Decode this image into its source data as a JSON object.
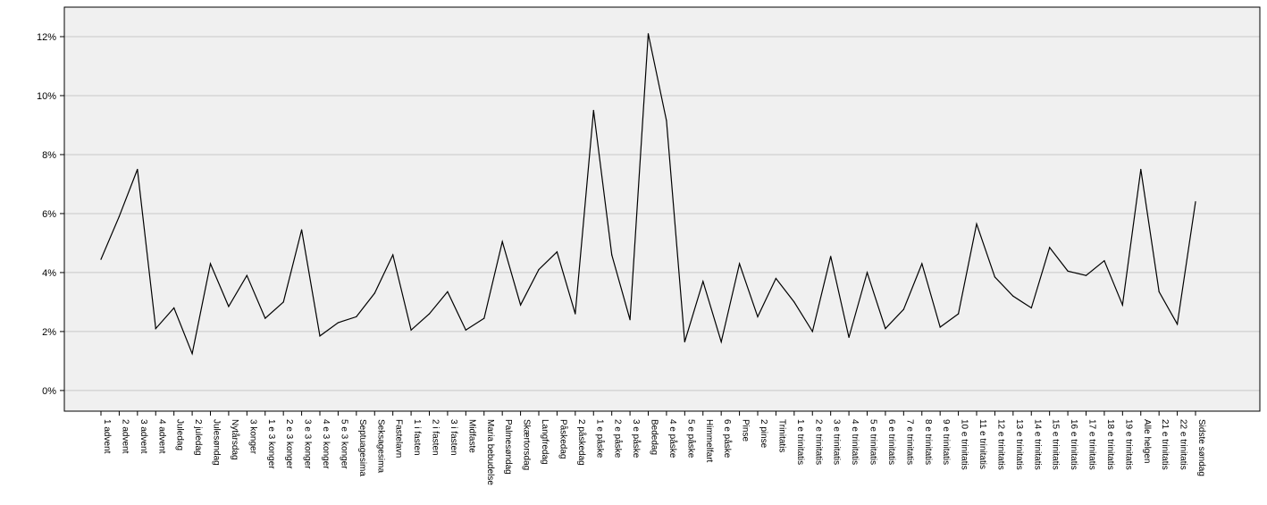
{
  "chart_data": {
    "type": "line",
    "title": "",
    "xlabel": "",
    "ylabel": "",
    "ylim": [
      -0.7,
      13.0
    ],
    "y_ticks": [
      0,
      2,
      4,
      6,
      8,
      10,
      12
    ],
    "y_tick_labels": [
      "0%",
      "2%",
      "4%",
      "6%",
      "8%",
      "10%",
      "12%"
    ],
    "grid": "horizontal",
    "colors": {
      "plot_background": "#f0f0f0",
      "grid": "#c8c8c8",
      "line": "#000000",
      "axis": "#000000"
    },
    "categories": [
      "1 advent",
      "2 advent",
      "3 advent",
      "4 advent",
      "Juledag",
      "2 juledag",
      "Julesøndag",
      "Nytårsdag",
      "3 konger",
      "1 e 3 konger",
      "2 e 3 konger",
      "3 e 3 konger",
      "4 e 3 konger",
      "5 e 3 konger",
      "Septuagesima",
      "Seksagesima",
      "Fastelavn",
      "1 i fasten",
      "2 i fasten",
      "3 i fasten",
      "Midfaste",
      "Maria bebudelse",
      "Palmesøndag",
      "Skærtorsdag",
      "Langfredag",
      "Påskedag",
      "2 påskedag",
      "1 e påske",
      "2 e påske",
      "3 e påske",
      "Bededag",
      "4 e påske",
      "5 e påske",
      "Himmelfart",
      "6 e påske",
      "Pinse",
      "2 pinse",
      "Trinitatis",
      "1 e trinitatis",
      "2 e trinitatis",
      "3 e trinitatis",
      "4 e trinitatis",
      "5 e trinitatis",
      "6 e trinitatis",
      "7 e trinitatis",
      "8 e trinitatis",
      "9 e trinitatis",
      "10 e trinitatis",
      "11 e trinitatis",
      "12 e trinitatis",
      "13 e trinitatis",
      "14 e trinitatis",
      "15 e trinitatis",
      "16 e trinitatis",
      "17 e trinitatis",
      "18 e trinitatis",
      "19 e trinitatis",
      "Alle helgen",
      "21 e trinitatis",
      "22 e trinitatis",
      "Sidste søndag"
    ],
    "series": [
      {
        "values": [
          4.45,
          5.9,
          7.5,
          2.1,
          2.8,
          1.25,
          4.3,
          2.85,
          3.9,
          2.45,
          3.0,
          5.45,
          1.85,
          2.3,
          2.5,
          3.3,
          4.6,
          2.05,
          2.6,
          3.35,
          2.05,
          2.45,
          5.05,
          2.9,
          4.1,
          4.7,
          2.6,
          9.5,
          4.6,
          2.4,
          12.1,
          9.15,
          1.65,
          3.7,
          1.65,
          4.3,
          2.5,
          3.8,
          3.0,
          2.0,
          4.55,
          1.8,
          4.0,
          2.1,
          2.75,
          4.3,
          2.15,
          2.6,
          5.65,
          3.85,
          3.2,
          2.8,
          4.85,
          4.05,
          3.9,
          4.4,
          2.9,
          7.5,
          3.35,
          2.25,
          6.4
        ]
      }
    ]
  }
}
